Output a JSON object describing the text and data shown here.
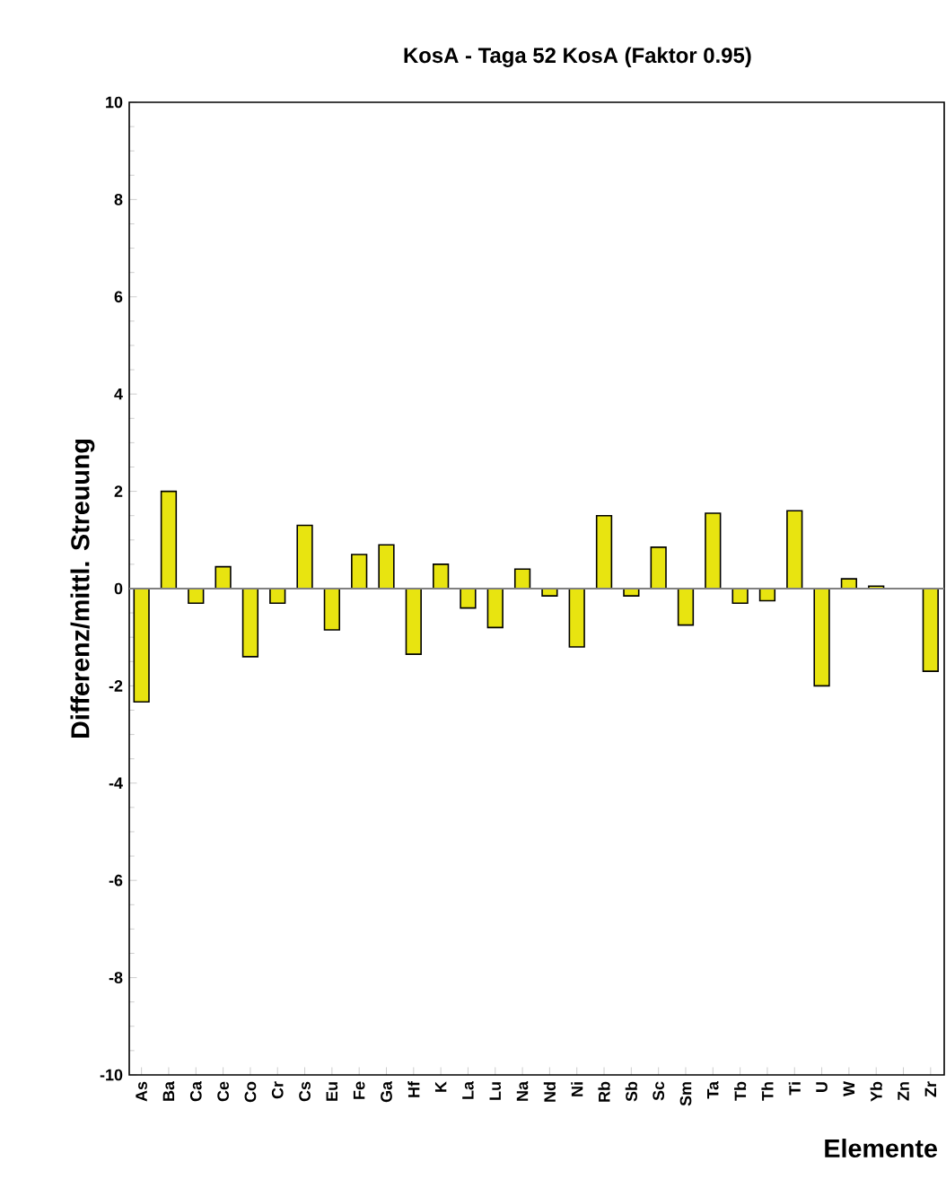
{
  "chart_data": {
    "type": "bar",
    "title": "KosA  -  Taga 52 KosA  (Faktor  0.95)",
    "xlabel": "Elemente",
    "ylabel": "Differenz/mittl. Streuung",
    "categories": [
      "As",
      "Ba",
      "Ca",
      "Ce",
      "Co",
      "Cr",
      "Cs",
      "Eu",
      "Fe",
      "Ga",
      "Hf",
      "K",
      "La",
      "Lu",
      "Na",
      "Nd",
      "Ni",
      "Rb",
      "Sb",
      "Sc",
      "Sm",
      "Ta",
      "Tb",
      "Th",
      "Ti",
      "U",
      "W",
      "Yb",
      "Zn",
      "Zr"
    ],
    "values": [
      -2.33,
      2.0,
      -0.3,
      0.45,
      -1.4,
      -0.3,
      1.3,
      -0.85,
      0.7,
      0.9,
      -1.35,
      0.5,
      -0.4,
      -0.8,
      0.4,
      -0.15,
      -1.2,
      1.5,
      -0.15,
      0.85,
      -0.75,
      1.55,
      -0.3,
      -0.25,
      1.6,
      -2.0,
      0.2,
      0.05,
      null,
      -1.7
    ],
    "color": "#e8e410",
    "ylim": [
      -10,
      10
    ],
    "yticks": [
      -10,
      -8,
      -6,
      -4,
      -2,
      0,
      2,
      4,
      6,
      8,
      10
    ]
  }
}
